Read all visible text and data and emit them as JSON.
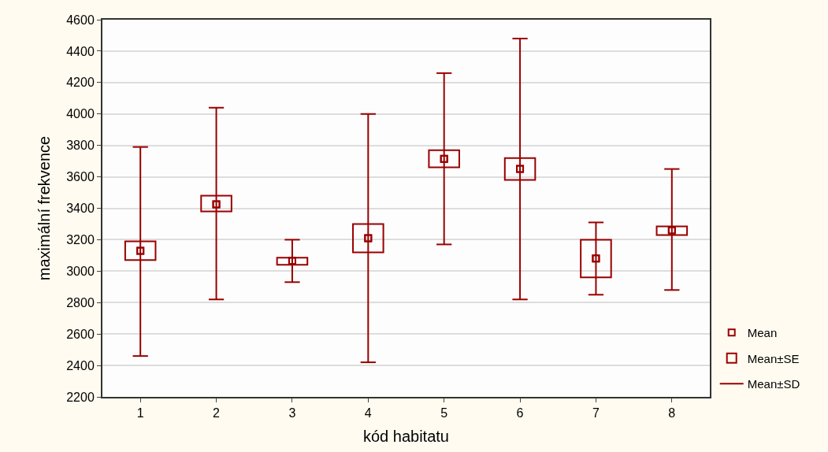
{
  "chart_data": {
    "type": "scatter",
    "xlabel": "kód habitatu",
    "ylabel": "maximální frekvence",
    "categories": [
      "1",
      "2",
      "3",
      "4",
      "5",
      "6",
      "7",
      "8"
    ],
    "series": [
      {
        "name": "Mean",
        "type": "scatter",
        "marker": "square",
        "color": "#990000",
        "values": [
          3130,
          3425,
          3065,
          3210,
          3715,
          3650,
          3080,
          3260
        ]
      },
      {
        "name": "Mean±SE",
        "type": "bar",
        "color": "#990000",
        "base": [
          3070,
          3380,
          3040,
          3120,
          3660,
          3580,
          2960,
          3230
        ],
        "values": [
          120,
          100,
          45,
          180,
          110,
          140,
          240,
          55
        ]
      },
      {
        "name": "Mean±SD",
        "type": "scatter",
        "marker": "square",
        "color": "#990000",
        "values": [
          3130,
          3425,
          3065,
          3210,
          3715,
          3650,
          3080,
          3260
        ],
        "errors": [
          [
            2460,
            3790
          ],
          [
            2820,
            4040
          ],
          [
            2930,
            3200
          ],
          [
            2420,
            4000
          ],
          [
            3170,
            4260
          ],
          [
            2820,
            4480
          ],
          [
            2850,
            3310
          ],
          [
            2880,
            3650
          ]
        ]
      }
    ],
    "ylim": [
      2200,
      4600
    ],
    "yticks": [
      2200,
      2400,
      2600,
      2800,
      3000,
      3200,
      3400,
      3600,
      3800,
      4000,
      4200,
      4400,
      4600
    ],
    "grid": "y",
    "legend": "bottom right"
  }
}
